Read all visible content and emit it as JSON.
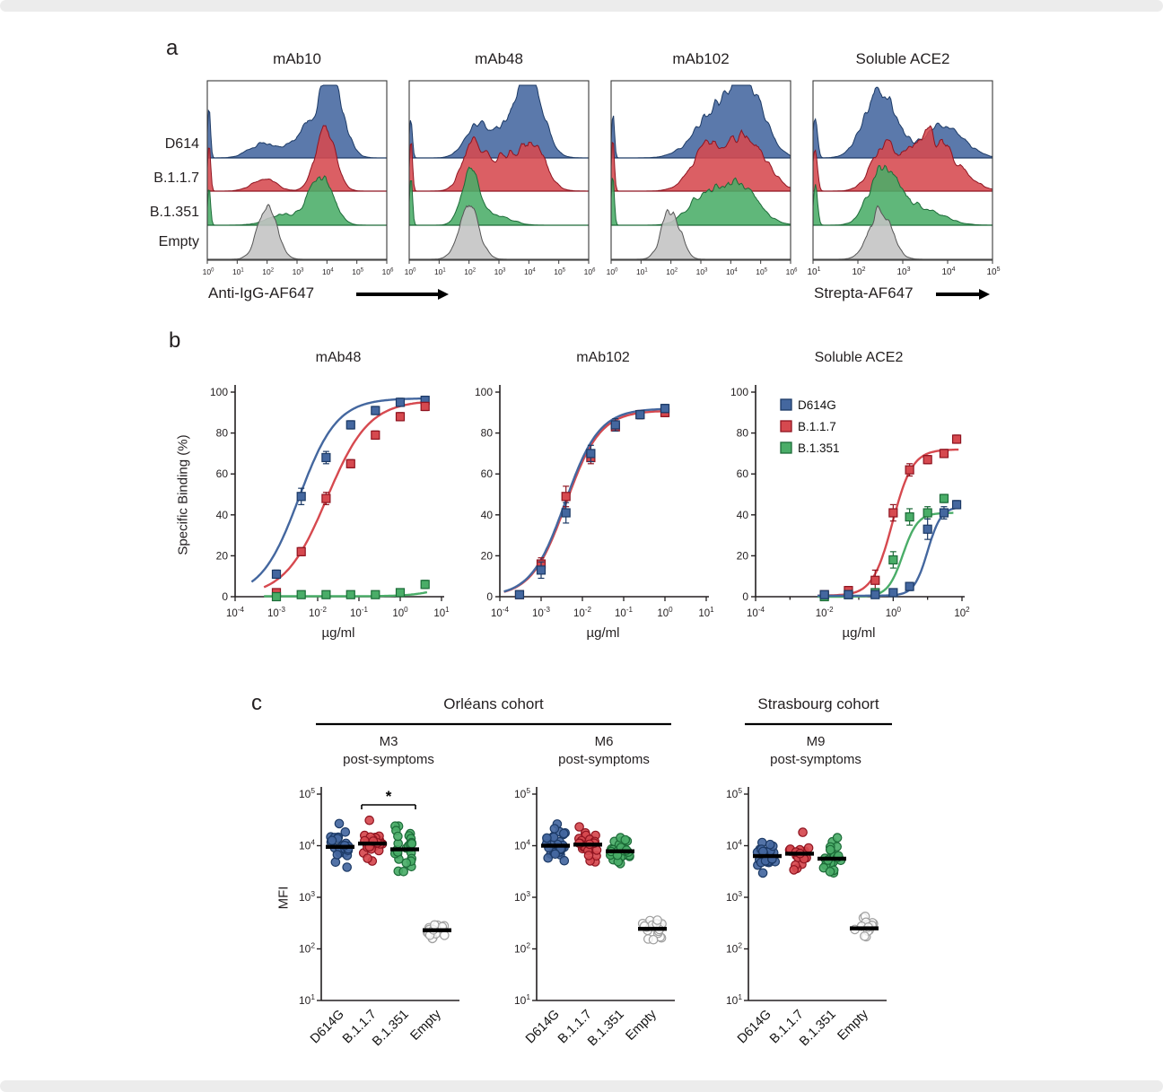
{
  "figure": {
    "background": "#ffffff",
    "page_trim_color": "#ececec"
  },
  "colors": {
    "d614g_blue": "#44679f",
    "d614g_blue_edge": "#1c3a66",
    "b117_red": "#d6494f",
    "b117_red_edge": "#8f1420",
    "b1351_green": "#4aad68",
    "b1351_green_edge": "#1c6b38",
    "empty_grey": "#c3c3c3",
    "empty_grey_edge": "#555555",
    "axis": "#231f20"
  },
  "chart_data": [
    {
      "panel": "a",
      "type": "area",
      "subtype": "flow-cytometry histogram ridgeline",
      "letter": "a",
      "row_labels": [
        "D614",
        "B.1.1.7",
        "B.1.351",
        "Empty"
      ],
      "x_label_first_three": "Anti-IgG-AF647",
      "x_label_last": "Strepta-AF647",
      "plots": [
        {
          "title": "mAb10",
          "x_log_range": [
            0,
            6
          ],
          "rows": [
            {
              "name": "D614",
              "color": "blue",
              "peaks": [
                {
                  "mu": 0.06,
                  "s": 0.05,
                  "a": 50
                },
                {
                  "mu": 1.85,
                  "s": 0.45,
                  "a": 16
                },
                {
                  "mu": 3.35,
                  "s": 0.5,
                  "a": 30
                },
                {
                  "mu": 4.15,
                  "s": 0.4,
                  "a": 78
                }
              ]
            },
            {
              "name": "B.1.1.7",
              "color": "red",
              "peaks": [
                {
                  "mu": 0.06,
                  "s": 0.05,
                  "a": 55
                },
                {
                  "mu": 1.9,
                  "s": 0.4,
                  "a": 14
                },
                {
                  "mu": 3.95,
                  "s": 0.33,
                  "a": 72
                }
              ]
            },
            {
              "name": "B.1.351",
              "color": "green",
              "peaks": [
                {
                  "mu": 0.06,
                  "s": 0.05,
                  "a": 45
                },
                {
                  "mu": 2.55,
                  "s": 0.55,
                  "a": 11
                },
                {
                  "mu": 3.8,
                  "s": 0.4,
                  "a": 55
                }
              ]
            },
            {
              "name": "Empty",
              "color": "grey",
              "peaks": [
                {
                  "mu": 2.0,
                  "s": 0.32,
                  "a": 58
                }
              ]
            }
          ]
        },
        {
          "title": "mAb48",
          "x_log_range": [
            0,
            6
          ],
          "rows": [
            {
              "name": "D614",
              "color": "blue",
              "peaks": [
                {
                  "mu": 0.06,
                  "s": 0.05,
                  "a": 45
                },
                {
                  "mu": 2.25,
                  "s": 0.4,
                  "a": 34
                },
                {
                  "mu": 3.3,
                  "s": 0.5,
                  "a": 30
                },
                {
                  "mu": 4.05,
                  "s": 0.45,
                  "a": 76
                }
              ]
            },
            {
              "name": "B.1.1.7",
              "color": "red",
              "peaks": [
                {
                  "mu": 0.06,
                  "s": 0.05,
                  "a": 60
                },
                {
                  "mu": 2.1,
                  "s": 0.33,
                  "a": 46
                },
                {
                  "mu": 3.3,
                  "s": 0.7,
                  "a": 40
                },
                {
                  "mu": 4.2,
                  "s": 0.4,
                  "a": 36
                }
              ]
            },
            {
              "name": "B.1.351",
              "color": "green",
              "peaks": [
                {
                  "mu": 0.06,
                  "s": 0.05,
                  "a": 55
                },
                {
                  "mu": 2.05,
                  "s": 0.3,
                  "a": 62
                },
                {
                  "mu": 2.9,
                  "s": 0.5,
                  "a": 10
                }
              ]
            },
            {
              "name": "Empty",
              "color": "grey",
              "peaks": [
                {
                  "mu": 2.0,
                  "s": 0.33,
                  "a": 58
                }
              ]
            }
          ]
        },
        {
          "title": "mAb102",
          "x_log_range": [
            0,
            6
          ],
          "rows": [
            {
              "name": "D614",
              "color": "blue",
              "peaks": [
                {
                  "mu": 0.06,
                  "s": 0.05,
                  "a": 45
                },
                {
                  "mu": 3.5,
                  "s": 0.7,
                  "a": 50
                },
                {
                  "mu": 4.6,
                  "s": 0.55,
                  "a": 70
                }
              ]
            },
            {
              "name": "B.1.1.7",
              "color": "red",
              "peaks": [
                {
                  "mu": 0.06,
                  "s": 0.05,
                  "a": 55
                },
                {
                  "mu": 3.2,
                  "s": 0.55,
                  "a": 42
                },
                {
                  "mu": 4.5,
                  "s": 0.65,
                  "a": 60
                }
              ]
            },
            {
              "name": "B.1.351",
              "color": "green",
              "peaks": [
                {
                  "mu": 0.06,
                  "s": 0.05,
                  "a": 50
                },
                {
                  "mu": 3.0,
                  "s": 0.5,
                  "a": 28
                },
                {
                  "mu": 4.2,
                  "s": 0.65,
                  "a": 46
                }
              ]
            },
            {
              "name": "Empty",
              "color": "grey",
              "peaks": [
                {
                  "mu": 2.0,
                  "s": 0.3,
                  "a": 56
                }
              ]
            }
          ]
        },
        {
          "title": "Soluble ACE2",
          "x_log_range": [
            1,
            5
          ],
          "rows": [
            {
              "name": "D614",
              "color": "blue",
              "peaks": [
                {
                  "mu": 1.05,
                  "s": 0.05,
                  "a": 40
                },
                {
                  "mu": 2.5,
                  "s": 0.35,
                  "a": 74
                },
                {
                  "mu": 3.9,
                  "s": 0.45,
                  "a": 34
                }
              ]
            },
            {
              "name": "B.1.1.7",
              "color": "red",
              "peaks": [
                {
                  "mu": 1.05,
                  "s": 0.05,
                  "a": 45
                },
                {
                  "mu": 2.55,
                  "s": 0.28,
                  "a": 42
                },
                {
                  "mu": 3.6,
                  "s": 0.55,
                  "a": 62
                }
              ]
            },
            {
              "name": "B.1.351",
              "color": "green",
              "peaks": [
                {
                  "mu": 1.05,
                  "s": 0.05,
                  "a": 45
                },
                {
                  "mu": 2.55,
                  "s": 0.3,
                  "a": 58
                },
                {
                  "mu": 3.3,
                  "s": 0.5,
                  "a": 22
                }
              ]
            },
            {
              "name": "Empty",
              "color": "grey",
              "peaks": [
                {
                  "mu": 2.5,
                  "s": 0.25,
                  "a": 56
                }
              ]
            }
          ]
        }
      ]
    },
    {
      "panel": "b",
      "type": "line",
      "subtype": "dose-response binding curves",
      "letter": "b",
      "y_label": "Specific Binding (%)",
      "x_label": "µg/ml",
      "y_range": [
        0,
        100
      ],
      "y_ticks": [
        0,
        20,
        40,
        60,
        80,
        100
      ],
      "legend": [
        "D614G",
        "B.1.1.7",
        "B.1.351"
      ],
      "plots": [
        {
          "title": "mAb48",
          "x_log_range": [
            -4,
            1
          ],
          "x_tick_exponents": [
            -4,
            -3,
            -2,
            -1,
            0,
            1
          ],
          "show_legend": false,
          "series": [
            {
              "name": "D614G",
              "color": "blue",
              "x": [
                0.001,
                0.004,
                0.016,
                0.063,
                0.25,
                1,
                4
              ],
              "y": [
                11,
                49,
                68,
                84,
                91,
                95,
                96
              ],
              "err": [
                2,
                4,
                3,
                2,
                2,
                2,
                2
              ],
              "fit": {
                "bottom": 0,
                "top": 97,
                "logec50": -2.45,
                "hill": 0.95,
                "from": -3.6,
                "to": 0.65
              }
            },
            {
              "name": "B.1.1.7",
              "color": "red",
              "x": [
                0.001,
                0.004,
                0.016,
                0.063,
                0.25,
                1,
                4
              ],
              "y": [
                2,
                22,
                48,
                65,
                79,
                88,
                93
              ],
              "err": [
                1,
                2,
                3,
                2,
                2,
                2,
                2
              ],
              "fit": {
                "bottom": 0,
                "top": 96,
                "logec50": -1.78,
                "hill": 0.85,
                "from": -3.3,
                "to": 0.65
              }
            },
            {
              "name": "B.1.351",
              "color": "green",
              "x": [
                0.001,
                0.004,
                0.016,
                0.063,
                0.25,
                1,
                4
              ],
              "y": [
                0,
                1,
                1,
                1,
                1,
                2,
                6
              ],
              "err": [
                1,
                1,
                1,
                1,
                1,
                1,
                2
              ],
              "fit": {
                "bottom": 0.2,
                "top": 14,
                "logec50": 1.35,
                "hill": 1.1,
                "from": -3.3,
                "to": 0.65
              }
            }
          ]
        },
        {
          "title": "mAb102",
          "x_log_range": [
            -4,
            1
          ],
          "x_tick_exponents": [
            -4,
            -3,
            -2,
            -1,
            0,
            1
          ],
          "show_legend": false,
          "series": [
            {
              "name": "B.1.1.7",
              "color": "red",
              "x": [
                0.0003,
                0.001,
                0.004,
                0.016,
                0.063,
                0.25,
                1
              ],
              "y": [
                1,
                16,
                49,
                68,
                83,
                89,
                90
              ],
              "err": [
                1,
                3,
                5,
                3,
                2,
                2,
                2
              ],
              "fit": {
                "bottom": 0,
                "top": 91,
                "logec50": -2.4,
                "hill": 1.05,
                "from": -3.9,
                "to": 0.1
              }
            },
            {
              "name": "D614G",
              "color": "blue",
              "x": [
                0.0003,
                0.001,
                0.004,
                0.016,
                0.063,
                0.25,
                1
              ],
              "y": [
                1,
                13,
                41,
                70,
                84,
                89,
                92
              ],
              "err": [
                1,
                4,
                5,
                4,
                3,
                2,
                2
              ],
              "fit": {
                "bottom": 0,
                "top": 92,
                "logec50": -2.42,
                "hill": 1.05,
                "from": -3.9,
                "to": 0.1
              }
            }
          ]
        },
        {
          "title": "Soluble ACE2",
          "x_log_range": [
            -4,
            2
          ],
          "x_tick_exponents": [
            -4,
            -2,
            0,
            2
          ],
          "show_legend": true,
          "series": [
            {
              "name": "B.1.1.7",
              "color": "red",
              "x": [
                0.01,
                0.05,
                0.3,
                1,
                3,
                10,
                30,
                70
              ],
              "y": [
                1,
                3,
                8,
                41,
                62,
                67,
                70,
                77
              ],
              "err": [
                1,
                2,
                5,
                4,
                3,
                2,
                2,
                2
              ],
              "fit": {
                "bottom": 0.5,
                "top": 72,
                "logec50": -0.02,
                "hill": 1.5,
                "from": -2.2,
                "to": 1.9
              }
            },
            {
              "name": "B.1.351",
              "color": "green",
              "x": [
                0.01,
                0.05,
                0.3,
                1,
                3,
                10,
                30
              ],
              "y": [
                0,
                1,
                2,
                18,
                39,
                41,
                48
              ],
              "err": [
                1,
                1,
                1,
                4,
                4,
                3,
                2
              ],
              "fit": {
                "bottom": 0,
                "top": 41,
                "logec50": 0.28,
                "hill": 2.0,
                "from": -2.2,
                "to": 1.75
              }
            },
            {
              "name": "D614G",
              "color": "blue",
              "x": [
                0.01,
                0.05,
                0.3,
                1,
                3,
                10,
                30,
                70
              ],
              "y": [
                1,
                1,
                1,
                2,
                5,
                33,
                41,
                45
              ],
              "err": [
                1,
                1,
                1,
                1,
                2,
                5,
                3,
                2
              ],
              "fit": {
                "bottom": 0.5,
                "top": 44,
                "logec50": 1.0,
                "hill": 2.2,
                "from": -2.2,
                "to": 1.9
              }
            }
          ]
        }
      ]
    },
    {
      "panel": "c",
      "type": "scatter",
      "subtype": "serology dot plots (log MFI)",
      "letter": "c",
      "y_label": "MFI",
      "y_log_range": [
        1,
        5
      ],
      "categories": [
        "D614G",
        "B.1.1.7",
        "B.1.351",
        "Empty"
      ],
      "cohorts": [
        {
          "label": "Orléans cohort"
        },
        {
          "label": "Strasbourg cohort"
        }
      ],
      "plots": [
        {
          "title_line1": "M3",
          "title_line2": "post-symptoms",
          "significance": {
            "pair": [
              1,
              2
            ],
            "label": "*"
          },
          "groups": [
            {
              "name": "D614G",
              "n": 26,
              "median": 9500,
              "log_sd": 0.19
            },
            {
              "name": "B.1.1.7",
              "n": 26,
              "median": 11000,
              "log_sd": 0.17
            },
            {
              "name": "B.1.351",
              "n": 26,
              "median": 8500,
              "log_sd": 0.2
            },
            {
              "name": "Empty",
              "n": 18,
              "median": 230,
              "log_sd": 0.11
            }
          ]
        },
        {
          "title_line1": "M6",
          "title_line2": "post-symptoms",
          "significance": null,
          "groups": [
            {
              "name": "D614G",
              "n": 28,
              "median": 10000,
              "log_sd": 0.17
            },
            {
              "name": "B.1.1.7",
              "n": 28,
              "median": 10500,
              "log_sd": 0.15
            },
            {
              "name": "B.1.351",
              "n": 28,
              "median": 7800,
              "log_sd": 0.18
            },
            {
              "name": "Empty",
              "n": 20,
              "median": 245,
              "log_sd": 0.1
            }
          ]
        },
        {
          "title_line1": "M9",
          "title_line2": "post-symptoms",
          "significance": null,
          "groups": [
            {
              "name": "D614G",
              "n": 22,
              "median": 6300,
              "log_sd": 0.14
            },
            {
              "name": "B.1.1.7",
              "n": 22,
              "median": 7000,
              "log_sd": 0.14
            },
            {
              "name": "B.1.351",
              "n": 22,
              "median": 5600,
              "log_sd": 0.15
            },
            {
              "name": "Empty",
              "n": 15,
              "median": 250,
              "log_sd": 0.1
            }
          ]
        }
      ]
    }
  ]
}
